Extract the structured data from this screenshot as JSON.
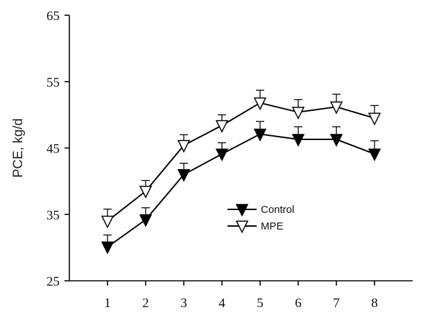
{
  "chart_data": {
    "type": "line",
    "title": "",
    "xlabel": "",
    "ylabel": "PCE, kg/d",
    "x": [
      1,
      2,
      3,
      4,
      5,
      6,
      7,
      8
    ],
    "x_ticks": [
      "1",
      "2",
      "3",
      "4",
      "5",
      "6",
      "7",
      "8"
    ],
    "xlim": [
      0,
      9
    ],
    "ylim": [
      25,
      65
    ],
    "y_ticks": [
      "25",
      "35",
      "45",
      "55",
      "65"
    ],
    "grid": false,
    "legend_position": "center",
    "series": [
      {
        "name": "Control",
        "marker": "filled-down-triangle",
        "color": "#000000",
        "values": [
          30.1,
          34.2,
          41.0,
          44.1,
          47.1,
          46.3,
          46.3,
          44.1
        ],
        "error_up": [
          1.8,
          1.8,
          1.7,
          1.7,
          1.9,
          1.9,
          1.9,
          2.0
        ]
      },
      {
        "name": "MPE",
        "marker": "open-down-triangle",
        "color": "#000000",
        "values": [
          34.0,
          38.5,
          45.4,
          48.4,
          51.8,
          50.4,
          51.2,
          49.5
        ],
        "error_up": [
          1.8,
          1.6,
          1.6,
          1.6,
          1.9,
          1.9,
          1.9,
          1.9
        ]
      }
    ]
  }
}
